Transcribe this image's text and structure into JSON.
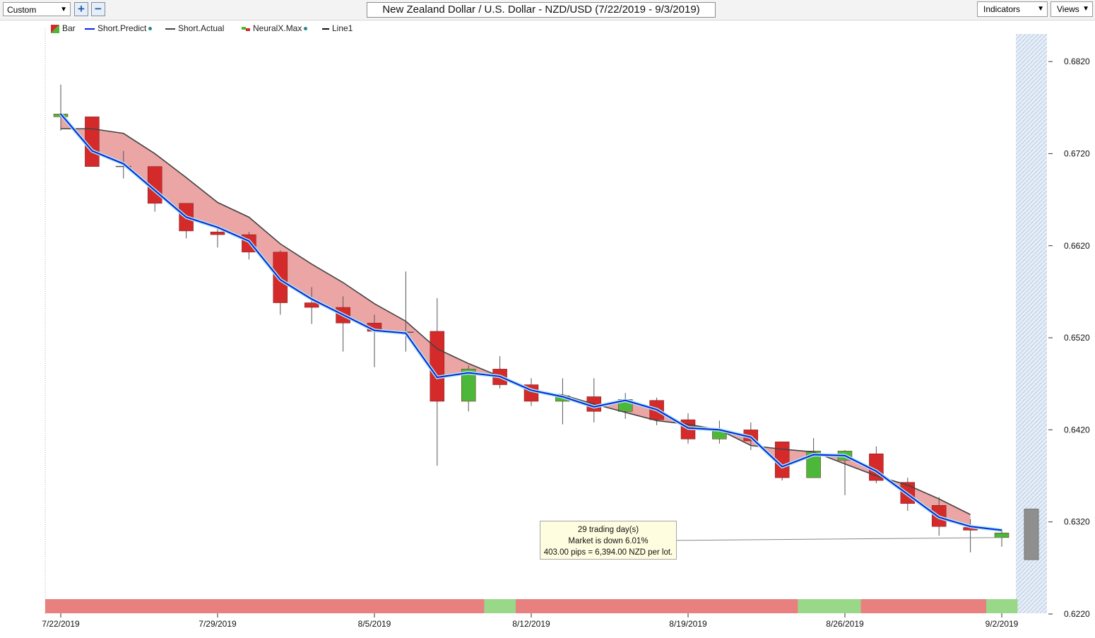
{
  "toolbar": {
    "preset_value": "Custom",
    "zoom_in_label": "+",
    "zoom_out_label": "−",
    "chart_title": "New Zealand Dollar / U.S. Dollar - NZD/USD (7/22/2019 - 9/3/2019)",
    "indicators_label": "Indicators",
    "views_label": "Views"
  },
  "legend": {
    "bar": "Bar",
    "short_predict": "Short.Predict",
    "short_actual": "Short.Actual",
    "neuralx_max": "NeuralX.Max",
    "line1": "Line1"
  },
  "info_box": {
    "line1": "29 trading day(s)",
    "line2": "Market is down 6.01%",
    "line3": "403.00 pips = 6,394.00 NZD per lot."
  },
  "colors": {
    "up": "#4cb83a",
    "down": "#d42a2a",
    "predict": "#0a22e0",
    "actual": "#444444",
    "fill": "#eaa0a0",
    "band_red": "#e88080",
    "band_green": "#98d888"
  },
  "chart_data": {
    "type": "candlestick",
    "title": "New Zealand Dollar / U.S. Dollar - NZD/USD (7/22/2019 - 9/3/2019)",
    "ylim": [
      0.622,
      0.686
    ],
    "y_ticks": [
      "0.6820",
      "0.6720",
      "0.6620",
      "0.6520",
      "0.6420",
      "0.6320",
      "0.6220"
    ],
    "x_ticks": [
      {
        "label": "7/22/2019",
        "index": 0
      },
      {
        "label": "7/29/2019",
        "index": 5
      },
      {
        "label": "8/5/2019",
        "index": 10
      },
      {
        "label": "8/12/2019",
        "index": 15
      },
      {
        "label": "8/19/2019",
        "index": 20
      },
      {
        "label": "8/26/2019",
        "index": 25
      },
      {
        "label": "9/2/2019",
        "index": 30
      }
    ],
    "candles": [
      {
        "date": "7/22/2019",
        "open": 0.676,
        "high": 0.6795,
        "low": 0.6745,
        "close": 0.6763
      },
      {
        "date": "7/23/2019",
        "open": 0.676,
        "high": 0.676,
        "low": 0.6706,
        "close": 0.6706
      },
      {
        "date": "7/24/2019",
        "open": 0.6706,
        "high": 0.6723,
        "low": 0.6693,
        "close": 0.6706
      },
      {
        "date": "7/25/2019",
        "open": 0.6706,
        "high": 0.6706,
        "low": 0.6657,
        "close": 0.6666
      },
      {
        "date": "7/26/2019",
        "open": 0.6666,
        "high": 0.6666,
        "low": 0.6628,
        "close": 0.6636
      },
      {
        "date": "7/29/2019",
        "open": 0.6635,
        "high": 0.6642,
        "low": 0.6618,
        "close": 0.6632
      },
      {
        "date": "7/30/2019",
        "open": 0.6632,
        "high": 0.6635,
        "low": 0.6605,
        "close": 0.6613
      },
      {
        "date": "7/31/2019",
        "open": 0.6613,
        "high": 0.6615,
        "low": 0.6545,
        "close": 0.6558
      },
      {
        "date": "8/1/2019",
        "open": 0.6558,
        "high": 0.6575,
        "low": 0.6535,
        "close": 0.6553
      },
      {
        "date": "8/2/2019",
        "open": 0.6553,
        "high": 0.6565,
        "low": 0.6505,
        "close": 0.6536
      },
      {
        "date": "8/5/2019",
        "open": 0.6536,
        "high": 0.6545,
        "low": 0.6488,
        "close": 0.6527
      },
      {
        "date": "8/6/2019",
        "open": 0.6526,
        "high": 0.6592,
        "low": 0.6505,
        "close": 0.6526
      },
      {
        "date": "8/7/2019",
        "open": 0.6527,
        "high": 0.6563,
        "low": 0.6381,
        "close": 0.6451
      },
      {
        "date": "8/8/2019",
        "open": 0.6451,
        "high": 0.649,
        "low": 0.644,
        "close": 0.6486
      },
      {
        "date": "8/9/2019",
        "open": 0.6486,
        "high": 0.65,
        "low": 0.6465,
        "close": 0.6469
      },
      {
        "date": "8/12/2019",
        "open": 0.6469,
        "high": 0.6476,
        "low": 0.6446,
        "close": 0.6451
      },
      {
        "date": "8/13/2019",
        "open": 0.6451,
        "high": 0.6476,
        "low": 0.6426,
        "close": 0.6457
      },
      {
        "date": "8/14/2019",
        "open": 0.6456,
        "high": 0.6476,
        "low": 0.6428,
        "close": 0.644
      },
      {
        "date": "8/15/2019",
        "open": 0.644,
        "high": 0.646,
        "low": 0.6432,
        "close": 0.6453
      },
      {
        "date": "8/16/2019",
        "open": 0.6452,
        "high": 0.6455,
        "low": 0.6425,
        "close": 0.6431
      },
      {
        "date": "8/19/2019",
        "open": 0.6431,
        "high": 0.6438,
        "low": 0.6405,
        "close": 0.641
      },
      {
        "date": "8/20/2019",
        "open": 0.641,
        "high": 0.643,
        "low": 0.6405,
        "close": 0.642
      },
      {
        "date": "8/21/2019",
        "open": 0.642,
        "high": 0.6428,
        "low": 0.6398,
        "close": 0.6408
      },
      {
        "date": "8/22/2019",
        "open": 0.6407,
        "high": 0.6407,
        "low": 0.6365,
        "close": 0.6368
      },
      {
        "date": "8/23/2019",
        "open": 0.6368,
        "high": 0.6411,
        "low": 0.6368,
        "close": 0.6397
      },
      {
        "date": "8/26/2019",
        "open": 0.6387,
        "high": 0.6398,
        "low": 0.6349,
        "close": 0.6397
      },
      {
        "date": "8/27/2019",
        "open": 0.6394,
        "high": 0.6402,
        "low": 0.6362,
        "close": 0.6365
      },
      {
        "date": "8/28/2019",
        "open": 0.6363,
        "high": 0.6368,
        "low": 0.6332,
        "close": 0.634
      },
      {
        "date": "8/29/2019",
        "open": 0.6338,
        "high": 0.6347,
        "low": 0.6305,
        "close": 0.6315
      },
      {
        "date": "8/30/2019",
        "open": 0.6314,
        "high": 0.6323,
        "low": 0.6287,
        "close": 0.6311
      },
      {
        "date": "9/2/2019",
        "open": 0.6303,
        "high": 0.6312,
        "low": 0.6293,
        "close": 0.6308
      }
    ],
    "series": [
      {
        "name": "Short.Predict",
        "values": [
          0.6763,
          0.6723,
          0.6709,
          0.668,
          0.6651,
          0.664,
          0.6625,
          0.6583,
          0.6562,
          0.6545,
          0.6528,
          0.6525,
          0.6477,
          0.6482,
          0.6478,
          0.6463,
          0.6456,
          0.6445,
          0.6452,
          0.6442,
          0.6422,
          0.642,
          0.6412,
          0.638,
          0.6393,
          0.6392,
          0.6375,
          0.635,
          0.6325,
          0.6315,
          0.6311
        ]
      },
      {
        "name": "Short.Actual",
        "values": [
          0.6747,
          0.6747,
          0.6742,
          0.672,
          0.6694,
          0.6667,
          0.6651,
          0.6622,
          0.66,
          0.658,
          0.6557,
          0.6538,
          0.6508,
          0.6492,
          0.6478,
          0.6461,
          0.6458,
          0.6448,
          0.6439,
          0.643,
          0.6426,
          0.642,
          0.6403,
          0.6399,
          0.6396,
          0.6383,
          0.637,
          0.636,
          0.6345,
          0.6328
        ]
      }
    ],
    "band": [
      {
        "from": 0,
        "to": 14,
        "state": "down"
      },
      {
        "from": 14,
        "to": 15,
        "state": "up"
      },
      {
        "from": 15,
        "to": 24,
        "state": "down"
      },
      {
        "from": 24,
        "to": 26,
        "state": "up"
      },
      {
        "from": 26,
        "to": 30,
        "state": "down"
      },
      {
        "from": 30,
        "to": 31,
        "state": "up"
      }
    ],
    "forecast_bar": {
      "high": 0.6334,
      "low": 0.6279
    },
    "line1": {
      "from_index": 15,
      "from_value": 0.6303,
      "to_index": 30,
      "to_value": 0.6303
    },
    "grid": false
  }
}
